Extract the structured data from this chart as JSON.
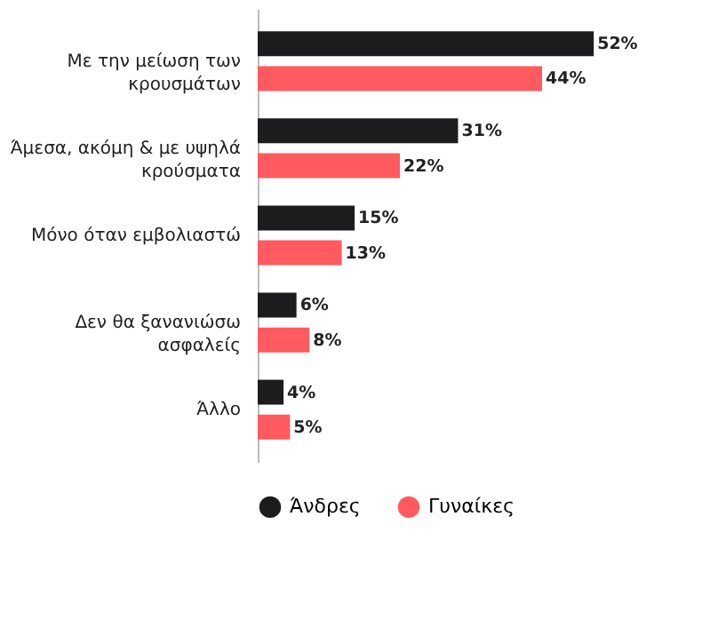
{
  "chart_data": {
    "type": "bar",
    "orientation": "horizontal",
    "categories": [
      "Με την μείωση των κρουσμάτων",
      "Άμεσα, ακόμη & με υψηλά κρούσματα",
      "Μόνο όταν εμβολιαστώ",
      "Δεν θα ξανανιώσω ασφαλείς",
      "Άλλο"
    ],
    "series": [
      {
        "name": "Άνδρες",
        "color": "#1c1c1e",
        "values": [
          52,
          31,
          15,
          6,
          4
        ],
        "value_labels": [
          "52%",
          "31%",
          "15%",
          "6%",
          "4%"
        ]
      },
      {
        "name": "Γυναίκες",
        "color": "#ff5a5f",
        "values": [
          44,
          22,
          13,
          8,
          5
        ],
        "value_labels": [
          "44%",
          "22%",
          "13%",
          "8%",
          "5%"
        ]
      }
    ],
    "legend": "bottom"
  }
}
